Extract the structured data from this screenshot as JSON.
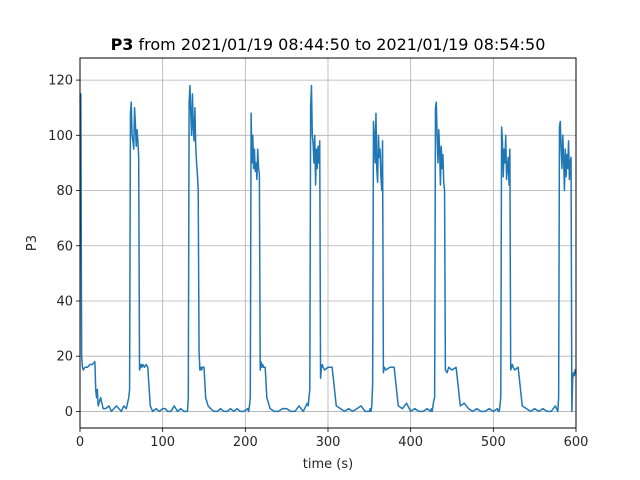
{
  "chart_data": {
    "type": "line",
    "title_bold": "P3",
    "title_rest": " from 2021/01/19 08:44:50 to 2021/01/19 08:54:50",
    "xlabel": "time (s)",
    "ylabel": "P3",
    "xlim": [
      0,
      600
    ],
    "ylim": [
      -6,
      128
    ],
    "xticks": [
      0,
      100,
      200,
      300,
      400,
      500,
      600
    ],
    "yticks": [
      0,
      20,
      40,
      60,
      80,
      100,
      120
    ],
    "grid": true,
    "line_color": "#1f77b4",
    "series": [
      {
        "x": [
          0,
          1,
          2,
          3,
          4,
          6,
          9,
          12,
          15,
          18,
          19,
          20,
          21,
          22,
          25,
          28,
          31,
          35,
          38,
          41,
          44,
          47,
          50,
          53,
          56,
          59,
          60,
          61,
          62,
          63,
          64,
          65,
          66,
          67,
          68,
          69,
          70,
          71,
          72,
          73,
          74,
          75,
          76,
          78,
          80,
          82,
          85,
          88,
          92,
          96,
          100,
          103,
          106,
          110,
          114,
          118,
          122,
          126,
          130,
          131,
          132,
          133,
          134,
          135,
          136,
          137,
          138,
          139,
          140,
          141,
          142,
          143,
          144,
          145,
          146,
          147,
          148,
          150,
          152,
          155,
          158,
          162,
          166,
          170,
          174,
          178,
          182,
          186,
          190,
          194,
          198,
          203,
          204,
          205,
          206,
          207,
          208,
          209,
          210,
          211,
          212,
          213,
          214,
          215,
          216,
          217,
          218,
          219,
          220,
          221,
          222,
          224,
          226,
          230,
          235,
          240,
          245,
          250,
          255,
          260,
          265,
          270,
          275,
          276,
          277,
          278,
          279,
          280,
          281,
          282,
          283,
          284,
          285,
          286,
          287,
          288,
          289,
          290,
          291,
          292,
          293,
          294,
          296,
          300,
          305,
          310,
          315,
          320,
          325,
          330,
          335,
          340,
          345,
          350,
          351,
          352,
          353,
          354,
          355,
          356,
          357,
          358,
          359,
          360,
          361,
          362,
          363,
          364,
          365,
          366,
          367,
          368,
          370,
          375,
          380,
          385,
          390,
          395,
          400,
          405,
          410,
          415,
          420,
          424,
          425,
          426,
          427,
          428,
          429,
          430,
          431,
          432,
          433,
          434,
          435,
          436,
          437,
          438,
          439,
          440,
          441,
          442,
          444,
          446,
          450,
          455,
          460,
          465,
          470,
          475,
          480,
          485,
          490,
          495,
          500,
          505,
          506,
          507,
          508,
          509,
          510,
          511,
          512,
          513,
          514,
          515,
          516,
          517,
          518,
          519,
          520,
          521,
          522,
          523,
          524,
          526,
          530,
          535,
          540,
          545,
          550,
          555,
          560,
          565,
          570,
          575,
          578,
          579,
          580,
          581,
          582,
          583,
          584,
          585,
          586,
          587,
          588,
          589,
          590,
          591,
          592,
          593,
          594,
          595,
          596,
          597,
          598,
          599,
          600
        ],
        "y": [
          112,
          115,
          20,
          16,
          15,
          16,
          16,
          17,
          17,
          18,
          8,
          5,
          8,
          2,
          5,
          1,
          1,
          2,
          0,
          1,
          2,
          1,
          0,
          2,
          1,
          5,
          8,
          108,
          112,
          100,
          98,
          95,
          110,
          104,
          96,
          102,
          98,
          92,
          15,
          16,
          17,
          16,
          17,
          16,
          17,
          16,
          2,
          0,
          1,
          0,
          1,
          1,
          0,
          0,
          2,
          0,
          1,
          0,
          0,
          5,
          112,
          118,
          108,
          100,
          115,
          103,
          98,
          110,
          96,
          90,
          86,
          80,
          22,
          15,
          16,
          15,
          16,
          16,
          5,
          2,
          1,
          0,
          0,
          1,
          0,
          0,
          1,
          0,
          1,
          0,
          0,
          1,
          0,
          2,
          5,
          108,
          90,
          100,
          88,
          95,
          87,
          90,
          84,
          95,
          88,
          86,
          15,
          18,
          16,
          17,
          16,
          16,
          5,
          1,
          0,
          0,
          1,
          1,
          0,
          0,
          2,
          0,
          3,
          2,
          5,
          8,
          110,
          118,
          100,
          97,
          90,
          100,
          82,
          95,
          88,
          96,
          90,
          98,
          12,
          16,
          17,
          16,
          15,
          16,
          16,
          2,
          1,
          0,
          1,
          0,
          1,
          2,
          0,
          0,
          1,
          0,
          2,
          10,
          105,
          100,
          90,
          108,
          88,
          83,
          100,
          92,
          95,
          85,
          80,
          98,
          14,
          16,
          15,
          16,
          16,
          2,
          1,
          3,
          0,
          1,
          0,
          0,
          1,
          0,
          1,
          0,
          2,
          4,
          5,
          110,
          112,
          100,
          90,
          102,
          95,
          82,
          96,
          88,
          93,
          83,
          80,
          15,
          14,
          16,
          15,
          16,
          2,
          3,
          1,
          0,
          1,
          0,
          0,
          1,
          0,
          1,
          0,
          0,
          2,
          5,
          103,
          98,
          85,
          95,
          90,
          100,
          84,
          88,
          92,
          82,
          95,
          15,
          16,
          17,
          16,
          15,
          16,
          2,
          1,
          0,
          1,
          0,
          1,
          0,
          0,
          2,
          0,
          5,
          103,
          105,
          95,
          88,
          100,
          92,
          80,
          95,
          85,
          93,
          88,
          98,
          84,
          90,
          92,
          0,
          12,
          14,
          13,
          15,
          14
        ]
      }
    ]
  }
}
